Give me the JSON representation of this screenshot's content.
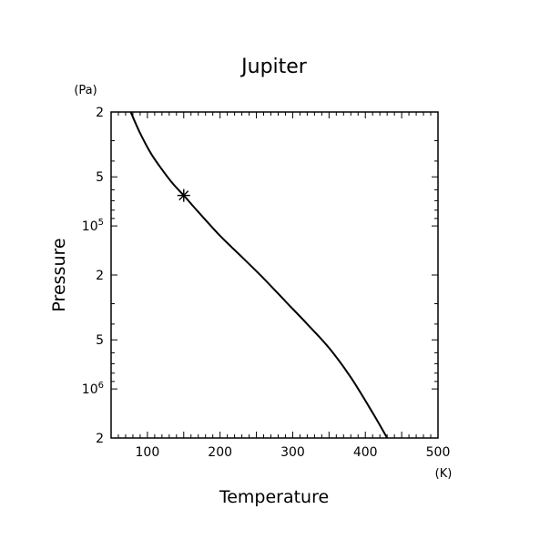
{
  "chart_data": {
    "type": "line",
    "title": "Jupiter",
    "xlabel": "Temperature",
    "xunit": "(K)",
    "ylabel": "Pressure",
    "yunit": "(Pa)",
    "xlim": [
      50,
      500
    ],
    "ylim": [
      20000,
      2000000
    ],
    "y_scale": "log",
    "y_inverted": true,
    "grid": false,
    "x_ticks": [
      {
        "value": 100,
        "label": "100"
      },
      {
        "value": 200,
        "label": "200"
      },
      {
        "value": 300,
        "label": "300"
      },
      {
        "value": 400,
        "label": "400"
      },
      {
        "value": 500,
        "label": "500"
      }
    ],
    "y_ticks": [
      {
        "value": 20000,
        "base": "2",
        "exp": ""
      },
      {
        "value": 50000,
        "base": "5",
        "exp": ""
      },
      {
        "value": 100000,
        "base": "10",
        "exp": "5"
      },
      {
        "value": 200000,
        "base": "2",
        "exp": ""
      },
      {
        "value": 500000,
        "base": "5",
        "exp": ""
      },
      {
        "value": 1000000,
        "base": "10",
        "exp": "6"
      },
      {
        "value": 2000000,
        "base": "2",
        "exp": ""
      }
    ],
    "series": [
      {
        "points": [
          [
            77,
            20000
          ],
          [
            90,
            27000
          ],
          [
            105,
            36000
          ],
          [
            120,
            45000
          ],
          [
            135,
            55000
          ],
          [
            150,
            65000
          ],
          [
            170,
            82000
          ],
          [
            200,
            115000
          ],
          [
            230,
            155000
          ],
          [
            260,
            210000
          ],
          [
            290,
            290000
          ],
          [
            320,
            400000
          ],
          [
            350,
            560000
          ],
          [
            380,
            850000
          ],
          [
            410,
            1400000
          ],
          [
            430,
            2000000
          ]
        ]
      }
    ],
    "markers": [
      {
        "x": 150,
        "y": 65000,
        "symbol": "asterisk"
      }
    ]
  }
}
